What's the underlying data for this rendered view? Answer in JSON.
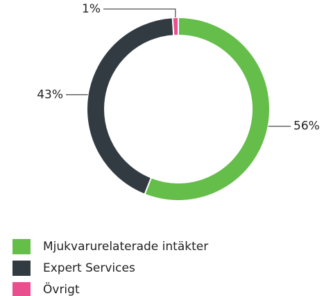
{
  "chart_data": {
    "type": "donut",
    "categories": [
      "Mjukvarurelaterade intäkter",
      "Expert Services",
      "Övrigt"
    ],
    "values": [
      56,
      43,
      1
    ],
    "value_labels": [
      "56%",
      "43%",
      "1%"
    ],
    "colors": [
      "#65bd4a",
      "#323b41",
      "#ea4f8d"
    ],
    "legend": "bottom-left"
  }
}
